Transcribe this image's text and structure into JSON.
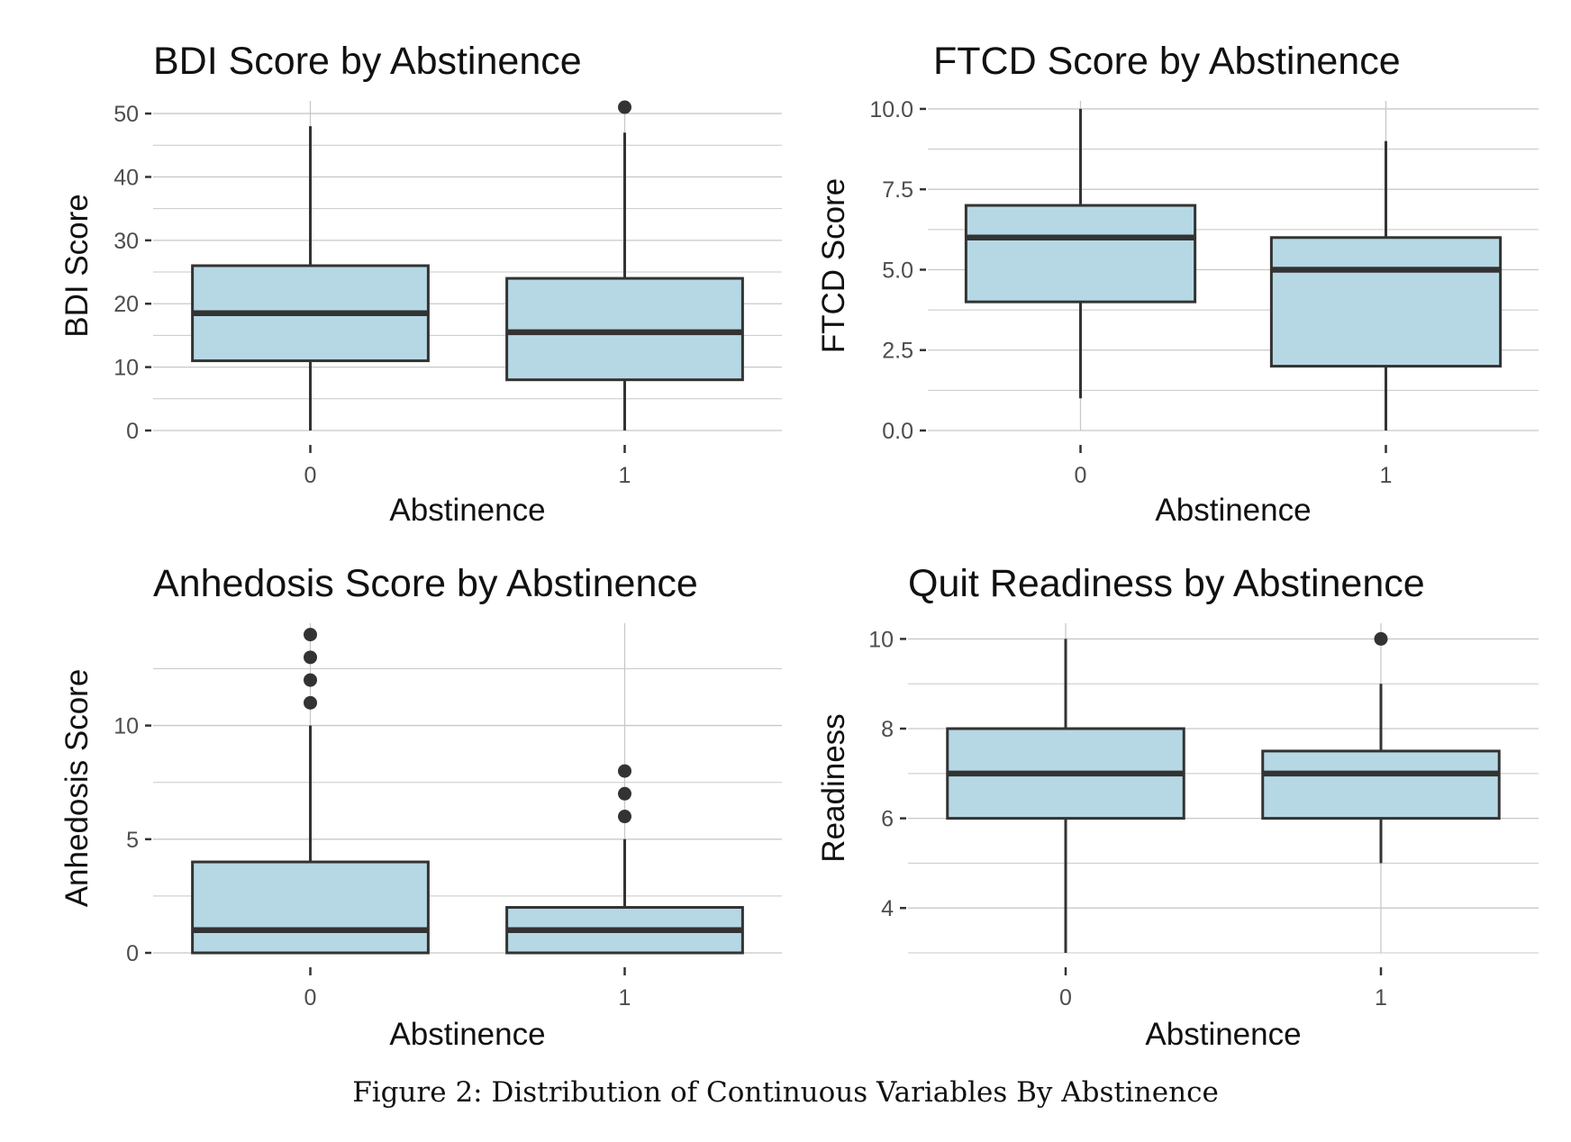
{
  "caption": "Figure 2: Distribution of Continuous Variables By Abstinence",
  "colors": {
    "box_fill": "#b6d8e5",
    "stroke": "#333333",
    "grid": "#c8c8c8",
    "axis_text": "#4d4d4d"
  },
  "chart_data": [
    {
      "type": "boxplot",
      "title": "BDI Score by Abstinence",
      "xlabel": "Abstinence",
      "ylabel": "BDI Score",
      "categories": [
        "0",
        "1"
      ],
      "ylim": [
        0,
        52
      ],
      "yticks": [
        0,
        10,
        20,
        30,
        40,
        50
      ],
      "yticklabels": [
        "0",
        "10",
        "20",
        "30",
        "40",
        "50"
      ],
      "boxes": [
        {
          "category": "0",
          "whisker_low": 0,
          "q1": 11,
          "median": 18.5,
          "q3": 26,
          "whisker_high": 48,
          "outliers": []
        },
        {
          "category": "1",
          "whisker_low": 0,
          "q1": 8,
          "median": 15.5,
          "q3": 24,
          "whisker_high": 47,
          "outliers": [
            51
          ]
        }
      ]
    },
    {
      "type": "boxplot",
      "title": "FTCD Score by Abstinence",
      "xlabel": "Abstinence",
      "ylabel": "FTCD Score",
      "categories": [
        "0",
        "1"
      ],
      "ylim": [
        0,
        10.25
      ],
      "yticks": [
        0,
        2.5,
        5,
        7.5,
        10
      ],
      "yticklabels": [
        "0.0",
        "2.5",
        "5.0",
        "7.5",
        "10.0"
      ],
      "boxes": [
        {
          "category": "0",
          "whisker_low": 1,
          "q1": 4,
          "median": 6,
          "q3": 7,
          "whisker_high": 10,
          "outliers": []
        },
        {
          "category": "1",
          "whisker_low": 0,
          "q1": 2,
          "median": 5,
          "q3": 6,
          "whisker_high": 9,
          "outliers": []
        }
      ]
    },
    {
      "type": "boxplot",
      "title": "Anhedosis Score by Abstinence",
      "xlabel": "Abstinence",
      "ylabel": "Anhedosis Score",
      "categories": [
        "0",
        "1"
      ],
      "ylim": [
        0,
        14.5
      ],
      "yticks": [
        0,
        5,
        10
      ],
      "yticklabels": [
        "0",
        "5",
        "10"
      ],
      "boxes": [
        {
          "category": "0",
          "whisker_low": 0,
          "q1": 0,
          "median": 1,
          "q3": 4,
          "whisker_high": 10,
          "outliers": [
            11,
            12,
            13,
            14
          ]
        },
        {
          "category": "1",
          "whisker_low": 0,
          "q1": 0,
          "median": 1,
          "q3": 2,
          "whisker_high": 5,
          "outliers": [
            6,
            7,
            8
          ]
        }
      ]
    },
    {
      "type": "boxplot",
      "title": "Quit Readiness by Abstinence",
      "xlabel": "Abstinence",
      "ylabel": "Readiness",
      "categories": [
        "0",
        "1"
      ],
      "ylim": [
        3,
        10.35
      ],
      "yticks": [
        4,
        6,
        8,
        10
      ],
      "yticklabels": [
        "4",
        "6",
        "8",
        "10"
      ],
      "boxes": [
        {
          "category": "0",
          "whisker_low": 3,
          "q1": 6,
          "median": 7,
          "q3": 8,
          "whisker_high": 10,
          "outliers": []
        },
        {
          "category": "1",
          "whisker_low": 5,
          "q1": 6,
          "median": 7,
          "q3": 7.5,
          "whisker_high": 9,
          "outliers": [
            10
          ]
        }
      ]
    }
  ]
}
